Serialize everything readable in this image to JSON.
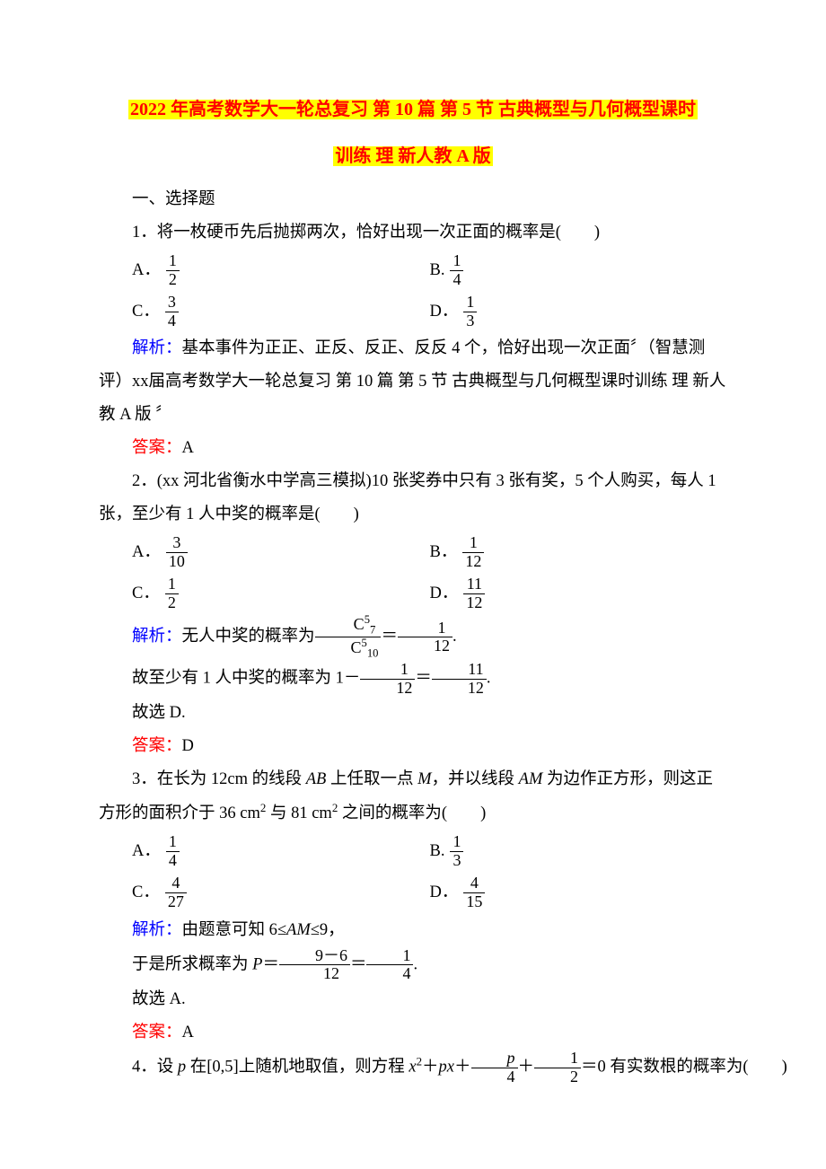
{
  "title_line1": "2022 年高考数学大一轮总复习 第 10 篇 第 5 节 古典概型与几何概型课时",
  "title_line2": "训练 理 新人教 A 版",
  "section1": "一、选择题",
  "q1": {
    "stem": "1．将一枚硬币先后抛掷两次，恰好出现一次正面的概率是(　　)",
    "optA_label": "A．",
    "optA_num": "1",
    "optA_den": "2",
    "optB_label": "B.",
    "optB_num": "1",
    "optB_den": "4",
    "optC_label": "C．",
    "optC_num": "3",
    "optC_den": "4",
    "optD_label": "D．",
    "optD_num": "1",
    "optD_den": "3",
    "analysis_label": "解析：",
    "analysis_text": "基本事件为正正、正反、反正、反反 4 个，恰好出现一次正面〞（智慧测评）xx届高考数学大一轮总复习 第 10 篇 第 5 节 古典概型与几何概型课时训练 理 新人教 A 版 〞",
    "answer_label": "答案：",
    "answer_text": "A"
  },
  "q2": {
    "stem": "2．(xx 河北省衡水中学高三模拟)10 张奖券中只有 3 张有奖，5 个人购买，每人 1 张，至少有 1 人中奖的概率是(　　)",
    "optA_label": "A．",
    "optA_num": "3",
    "optA_den": "10",
    "optB_label": "B．",
    "optB_num": "1",
    "optB_den": "12",
    "optC_label": "C．",
    "optC_num": "1",
    "optC_den": "2",
    "optD_label": "D．",
    "optD_num": "11",
    "optD_den": "12",
    "analysis_label": "解析：",
    "analysis_pre": "无人中奖的概率为",
    "frac1_num": "C",
    "frac1_num_sup": "5",
    "frac1_num_sub": "7",
    "frac1_den": "C",
    "frac1_den_sup": "5",
    "frac1_den_sub": "10",
    "eq1": "＝",
    "frac2_num": "1",
    "frac2_den": "12",
    "period1": ".",
    "line2_pre": "故至少有 1 人中奖的概率为 1－",
    "frac3_num": "1",
    "frac3_den": "12",
    "eq2": "＝",
    "frac4_num": "11",
    "frac4_den": "12",
    "period2": ".",
    "line3": "故选 D.",
    "answer_label": "答案：",
    "answer_text": "D"
  },
  "q3": {
    "stem_pre": "3．在长为 12cm 的线段 ",
    "AB": "AB",
    "stem_mid1": " 上任取一点 ",
    "M": "M",
    "stem_mid2": "，并以线段 ",
    "AM": "AM",
    "stem_mid3": " 为边作正方形，则这正方形的面积介于 36 cm",
    "sq1": "2",
    "stem_mid4": " 与 81 cm",
    "sq2": "2",
    "stem_end": " 之间的概率为(　　)",
    "optA_label": "A．",
    "optA_num": "1",
    "optA_den": "4",
    "optB_label": "B.",
    "optB_num": "1",
    "optB_den": "3",
    "optC_label": "C．",
    "optC_num": "4",
    "optC_den": "27",
    "optD_label": "D．",
    "optD_num": "4",
    "optD_den": "15",
    "analysis_label": "解析：",
    "analysis_pre": "由题意可知 6≤",
    "AM2": "AM",
    "analysis_post": "≤9，",
    "line2_pre": "于是所求概率为 ",
    "Pvar": "P",
    "eq1": "＝",
    "frac1_num": "9－6",
    "frac1_den": "12",
    "eq2": "＝",
    "frac2_num": "1",
    "frac2_den": "4",
    "period": ".",
    "line3": "故选 A.",
    "answer_label": "答案：",
    "answer_text": "A"
  },
  "q4": {
    "stem_pre": "4．设 ",
    "pvar": "p",
    "stem_mid1": " 在[0,5]上随机地取值，则方程 ",
    "xvar": "x",
    "sq": "2",
    "plus1": "＋",
    "pvar2": "p",
    "xvar2": "x",
    "plus2": "＋",
    "frac1_num_var": "p",
    "frac1_den": "4",
    "plus3": "＋",
    "frac2_num": "1",
    "frac2_den": "2",
    "stem_end": "＝0 有实数根的概率为(　　)"
  }
}
